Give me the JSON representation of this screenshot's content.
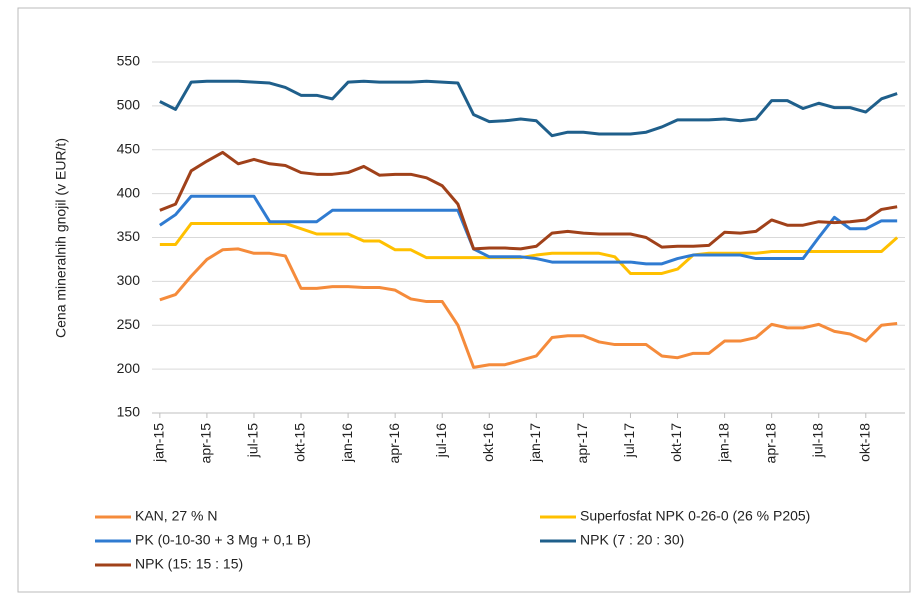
{
  "chart_data": {
    "type": "line",
    "y_label": "Cena mineralnih gnojil (v EUR/t)",
    "categories": [
      "jan-15",
      null,
      null,
      "apr-15",
      null,
      null,
      "jul-15",
      null,
      null,
      "okt-15",
      null,
      null,
      "jan-16",
      null,
      null,
      "apr-16",
      null,
      null,
      "jul-16",
      null,
      null,
      "okt-16",
      null,
      null,
      "jan-17",
      null,
      null,
      "apr-17",
      null,
      null,
      "jul-17",
      null,
      null,
      "okt-17",
      null,
      null,
      "jan-18",
      null,
      null,
      "apr-18",
      null,
      null,
      "jul-18",
      null,
      null,
      "okt-18",
      null,
      null
    ],
    "ylim": [
      150,
      550
    ],
    "yticks": [
      150,
      200,
      250,
      300,
      350,
      400,
      450,
      500,
      550
    ],
    "grid": true,
    "series": [
      {
        "name": "KAN, 27 % N",
        "color": "#f58b3b",
        "values": [
          279,
          285,
          306,
          325,
          336,
          337,
          332,
          332,
          329,
          292,
          292,
          294,
          294,
          293,
          293,
          290,
          280,
          277,
          277,
          250,
          202,
          205,
          205,
          210,
          215,
          236,
          238,
          238,
          231,
          228,
          228,
          228,
          215,
          213,
          218,
          218,
          232,
          232,
          236,
          251,
          247,
          247,
          251,
          243,
          240,
          232,
          250,
          252
        ]
      },
      {
        "name": "Superfosfat NPK 0-26-0 (26 % P205)",
        "color": "#ffc000",
        "values": [
          342,
          342,
          366,
          366,
          366,
          366,
          366,
          366,
          366,
          360,
          354,
          354,
          354,
          346,
          346,
          336,
          336,
          327,
          327,
          327,
          327,
          327,
          327,
          327,
          330,
          332,
          332,
          332,
          332,
          328,
          309,
          309,
          309,
          314,
          330,
          332,
          332,
          332,
          332,
          334,
          334,
          334,
          334,
          334,
          334,
          334,
          334,
          350
        ]
      },
      {
        "name": "PK (0-10-30 + 3 Mg + 0,1 B)",
        "color": "#2f7bd1",
        "values": [
          364,
          376,
          397,
          397,
          397,
          397,
          397,
          368,
          368,
          368,
          368,
          381,
          381,
          381,
          381,
          381,
          381,
          381,
          381,
          381,
          337,
          328,
          328,
          328,
          326,
          322,
          322,
          322,
          322,
          322,
          322,
          320,
          320,
          326,
          330,
          330,
          330,
          330,
          326,
          326,
          326,
          326,
          350,
          373,
          360,
          360,
          369,
          369
        ]
      },
      {
        "name": "NPK (7 : 20 : 30)",
        "color": "#1f5f8b",
        "values": [
          505,
          496,
          527,
          528,
          528,
          528,
          527,
          526,
          521,
          512,
          512,
          508,
          527,
          528,
          527,
          527,
          527,
          528,
          527,
          526,
          490,
          482,
          483,
          485,
          483,
          466,
          470,
          470,
          468,
          468,
          468,
          470,
          476,
          484,
          484,
          484,
          485,
          483,
          485,
          506,
          506,
          497,
          503,
          498,
          498,
          493,
          508,
          514
        ]
      },
      {
        "name": "NPK (15: 15 : 15)",
        "color": "#a0411a",
        "values": [
          381,
          388,
          426,
          437,
          447,
          434,
          439,
          434,
          432,
          424,
          422,
          422,
          424,
          431,
          421,
          422,
          422,
          418,
          409,
          388,
          337,
          338,
          338,
          337,
          340,
          355,
          357,
          355,
          354,
          354,
          354,
          350,
          339,
          340,
          340,
          341,
          356,
          355,
          357,
          370,
          364,
          364,
          368,
          367,
          368,
          370,
          382,
          385
        ]
      }
    ]
  }
}
